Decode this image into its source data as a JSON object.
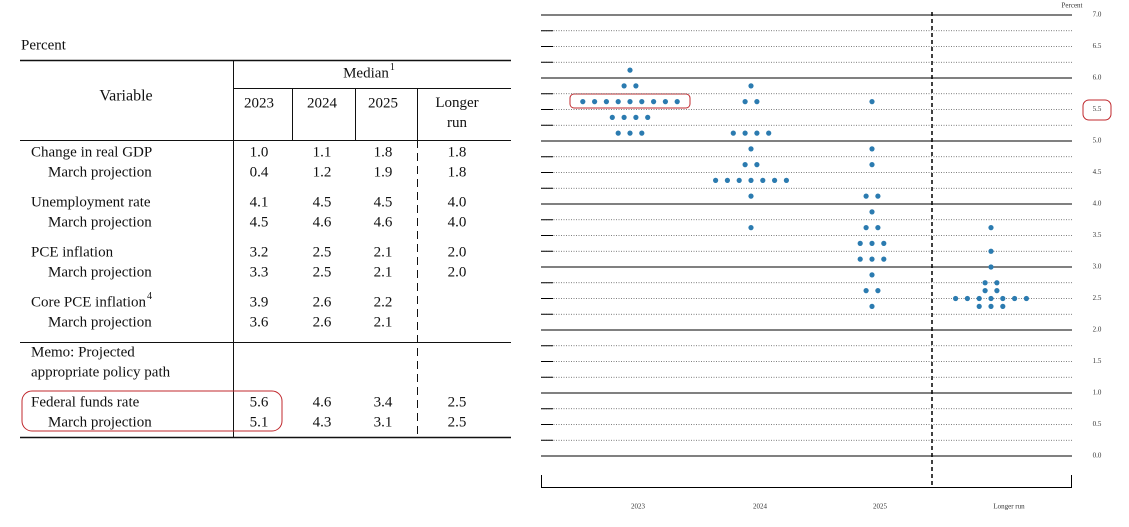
{
  "table": {
    "unit": "Percent",
    "variable_header": "Variable",
    "group_header": "Median",
    "group_note": "1",
    "columns": [
      "2023",
      "2024",
      "2025",
      "Longer run"
    ],
    "groups": [
      {
        "label": "Change in real GDP",
        "values": [
          "1.0",
          "1.1",
          "1.8",
          "1.8"
        ],
        "march": {
          "label": "March projection",
          "values": [
            "0.4",
            "1.2",
            "1.9",
            "1.8"
          ]
        }
      },
      {
        "label": "Unemployment rate",
        "values": [
          "4.1",
          "4.5",
          "4.5",
          "4.0"
        ],
        "march": {
          "label": "March projection",
          "values": [
            "4.5",
            "4.6",
            "4.6",
            "4.0"
          ]
        }
      },
      {
        "label": "PCE inflation",
        "values": [
          "3.2",
          "2.5",
          "2.1",
          "2.0"
        ],
        "march": {
          "label": "March projection",
          "values": [
            "3.3",
            "2.5",
            "2.1",
            "2.0"
          ]
        }
      },
      {
        "label": "Core PCE inflation",
        "note": "4",
        "values": [
          "3.9",
          "2.6",
          "2.2"
        ],
        "march": {
          "label": "March projection",
          "values": [
            "3.6",
            "2.6",
            "2.1"
          ]
        }
      },
      {
        "lines": [
          "Memo: Projected",
          "appropriate policy path"
        ]
      },
      {
        "label": "Federal funds rate",
        "values": [
          "5.6",
          "4.6",
          "3.4",
          "2.5"
        ],
        "march": {
          "label": "March projection",
          "values": [
            "5.1",
            "4.3",
            "3.1",
            "2.5"
          ]
        }
      }
    ]
  },
  "chart_data": {
    "type": "dot",
    "y_label": "Percent",
    "color": "#2b7bb0",
    "categories": [
      "2023",
      "2024",
      "2025",
      "Longer run"
    ],
    "values": [
      [
        6.125,
        5.875,
        5.875,
        5.625,
        5.625,
        5.625,
        5.625,
        5.625,
        5.625,
        5.625,
        5.625,
        5.625,
        5.375,
        5.375,
        5.375,
        5.375,
        5.125,
        5.125,
        5.125
      ],
      [
        5.875,
        5.625,
        5.625,
        5.125,
        5.125,
        5.125,
        5.125,
        4.875,
        4.625,
        4.625,
        4.375,
        4.375,
        4.375,
        4.375,
        4.375,
        4.375,
        4.375,
        4.125,
        3.625
      ],
      [
        5.625,
        4.875,
        4.625,
        4.125,
        4.125,
        3.875,
        3.625,
        3.625,
        3.375,
        3.375,
        3.375,
        3.125,
        3.125,
        3.125,
        2.875,
        2.625,
        2.625,
        2.375
      ],
      [
        3.625,
        3.25,
        3.0,
        2.75,
        2.75,
        2.625,
        2.625,
        2.5,
        2.5,
        2.5,
        2.5,
        2.5,
        2.5,
        2.5,
        2.375,
        2.375,
        2.375
      ]
    ],
    "ylim": [
      0,
      7
    ],
    "yticks": [
      {
        "value": 0,
        "label": "0.0"
      },
      0.5,
      {
        "value": 1,
        "label": "1.0"
      },
      1.5,
      {
        "value": 2,
        "label": "2.0"
      },
      2.5,
      {
        "value": 3,
        "label": "3.0"
      },
      3.5,
      {
        "value": 4,
        "label": "4.0"
      },
      4.5,
      {
        "value": 5,
        "label": "5.0"
      },
      5.5,
      {
        "value": 6,
        "label": "6.0"
      },
      6.5,
      {
        "value": 7,
        "label": "7.0"
      }
    ],
    "grid": true
  }
}
